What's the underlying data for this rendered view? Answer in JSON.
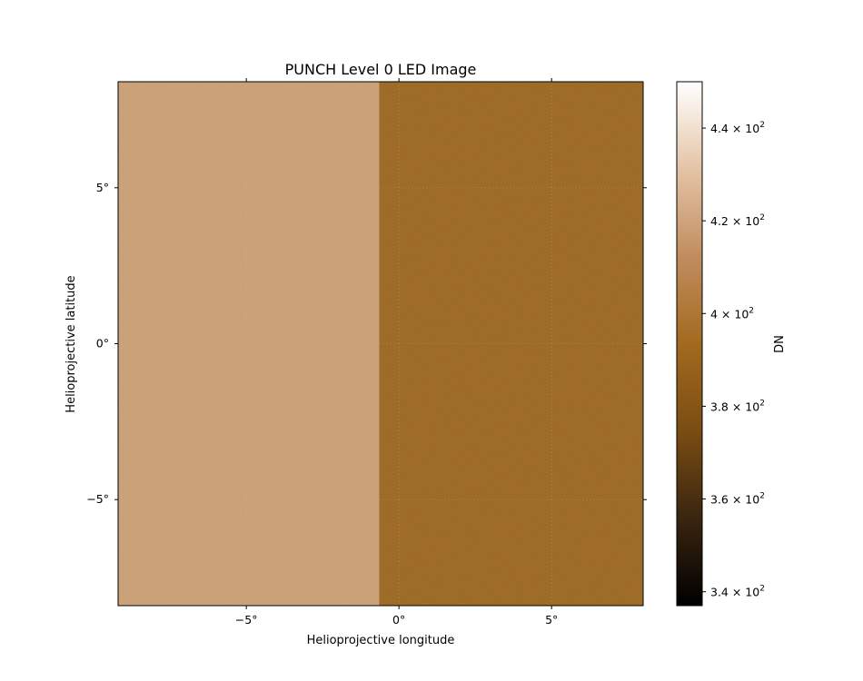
{
  "chart_data": {
    "type": "heatmap",
    "title": "PUNCH Level 0 LED Image",
    "xlabel": "Helioprojective longitude",
    "ylabel": "Helioprojective latitude",
    "xlim_deg": [
      -9.2,
      8.0
    ],
    "ylim_deg": [
      -8.4,
      8.4
    ],
    "x_ticks": [
      {
        "value": -5,
        "label": "−5°"
      },
      {
        "value": 0,
        "label": "0°"
      },
      {
        "value": 5,
        "label": "5°"
      }
    ],
    "y_ticks": [
      {
        "value": 5,
        "label": "5°"
      },
      {
        "value": 0,
        "label": "0°"
      },
      {
        "value": -5,
        "label": "−5°"
      }
    ],
    "regions": [
      {
        "name": "left-half",
        "x_range_deg": [
          -9.2,
          -0.65
        ],
        "approx_value_dn": 412,
        "color": "#cc9f73"
      },
      {
        "name": "right-half",
        "x_range_deg": [
          -0.65,
          8.0
        ],
        "approx_value_dn": 392,
        "color": "#9b6419"
      }
    ],
    "grid": true,
    "colormap": "copper-like (black → brown → white)",
    "colorbar": {
      "label": "DN",
      "range": [
        337,
        450
      ],
      "ticks": [
        {
          "value": 440,
          "mantissa": "4.4"
        },
        {
          "value": 420,
          "mantissa": "4.2"
        },
        {
          "value": 400,
          "mantissa": "4"
        },
        {
          "value": 380,
          "mantissa": "3.8"
        },
        {
          "value": 360,
          "mantissa": "3.6"
        },
        {
          "value": 340,
          "mantissa": "3.4"
        }
      ],
      "tick_suffix": "× 10",
      "tick_exponent": "2",
      "stops": [
        "#000000",
        "#3a2510",
        "#7a4d13",
        "#a26a1f",
        "#c18d5f",
        "#e4c4a6",
        "#ffffff"
      ]
    }
  }
}
